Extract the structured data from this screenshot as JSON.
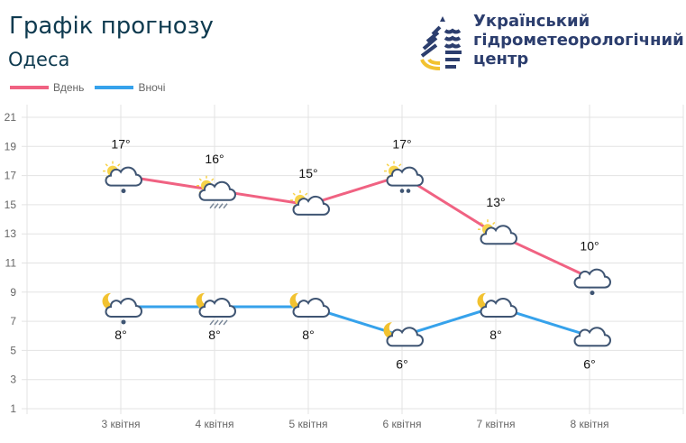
{
  "header": {
    "title": "Графік прогнозу",
    "city": "Одеса",
    "org_lines": [
      "Український",
      "гідрометеорологічний",
      "центр"
    ]
  },
  "legend": [
    {
      "label": "Вдень",
      "color": "#f06282"
    },
    {
      "label": "Вночі",
      "color": "#36a2eb"
    }
  ],
  "chart_data": {
    "type": "line",
    "categories": [
      "3 квітня",
      "4 квітня",
      "5 квітня",
      "6 квітня",
      "7 квітня",
      "8 квітня"
    ],
    "ylim": [
      1,
      21
    ],
    "yticks": [
      1,
      3,
      5,
      7,
      9,
      11,
      13,
      15,
      17,
      19,
      21
    ],
    "grid": true,
    "legend_placement": "top-left",
    "series": [
      {
        "name": "Вдень",
        "color": "#f06282",
        "values": [
          17,
          16,
          15,
          17,
          13,
          10
        ],
        "labels": [
          "17°",
          "16°",
          "15°",
          "17°",
          "13°",
          "10°"
        ],
        "icons": [
          "sun-cloud-drop",
          "sun-cloud-rain",
          "sun-cloud",
          "sun-cloud-drops",
          "sun-cloud",
          "cloud-drop"
        ]
      },
      {
        "name": "Вночі",
        "color": "#36a2eb",
        "values": [
          8,
          8,
          8,
          6,
          8,
          6
        ],
        "labels": [
          "8°",
          "8°",
          "8°",
          "6°",
          "8°",
          "6°"
        ],
        "icons": [
          "moon-cloud-drop",
          "moon-cloud-rain",
          "moon-cloud",
          "moon-cloud",
          "moon-cloud",
          "cloud"
        ]
      }
    ]
  }
}
